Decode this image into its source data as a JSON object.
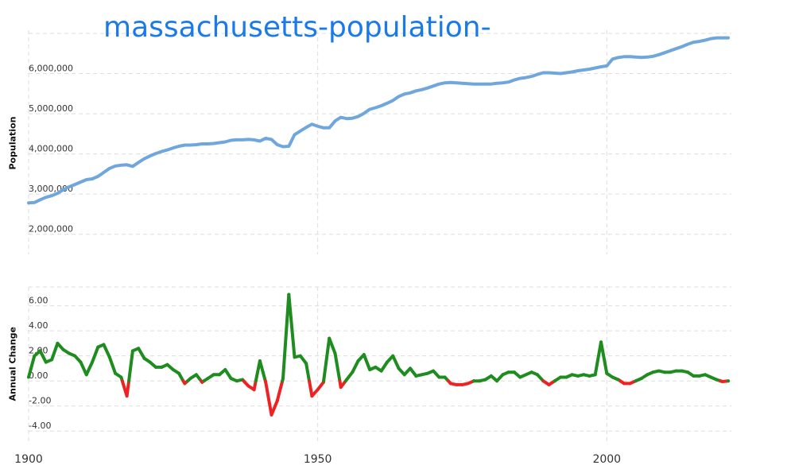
{
  "chart_data": [
    {
      "type": "line",
      "title": "massachusetts-population-",
      "ylabel": "Population",
      "xlabel": "",
      "xlim": [
        1900,
        2021
      ],
      "ylim": [
        1500000,
        7000000
      ],
      "x_ticks": [
        1900,
        1950,
        2000
      ],
      "x_tick_labels": [
        "1900",
        "1950",
        "2000"
      ],
      "y_ticks": [
        2000000,
        3000000,
        4000000,
        5000000,
        6000000
      ],
      "y_tick_labels": [
        "2,000,000",
        "3,000,000",
        "4,000,000",
        "5,000,000",
        "6,000,000"
      ],
      "grid": true,
      "colors": {
        "line": "#6fa6dc",
        "grid": "#dddddd"
      },
      "series": [
        {
          "x": [
            1900,
            1901,
            1902,
            1903,
            1904,
            1905,
            1906,
            1907,
            1908,
            1909,
            1910,
            1911,
            1912,
            1913,
            1914,
            1915,
            1916,
            1917,
            1918,
            1919,
            1920,
            1921,
            1922,
            1923,
            1924,
            1925,
            1926,
            1927,
            1928,
            1929,
            1930,
            1931,
            1932,
            1933,
            1934,
            1935,
            1936,
            1937,
            1938,
            1939,
            1940,
            1941,
            1942,
            1943,
            1944,
            1945,
            1946,
            1947,
            1948,
            1949,
            1950,
            1951,
            1952,
            1953,
            1954,
            1955,
            1956,
            1957,
            1958,
            1959,
            1960,
            1961,
            1962,
            1963,
            1964,
            1965,
            1966,
            1967,
            1968,
            1969,
            1970,
            1971,
            1972,
            1973,
            1974,
            1975,
            1976,
            1977,
            1978,
            1979,
            1980,
            1981,
            1982,
            1983,
            1984,
            1985,
            1986,
            1987,
            1988,
            1989,
            1990,
            1991,
            1992,
            1993,
            1994,
            1995,
            1996,
            1997,
            1998,
            1999,
            2000,
            2001,
            2002,
            2003,
            2004,
            2005,
            2006,
            2007,
            2008,
            2009,
            2010,
            2011,
            2012,
            2013,
            2014,
            2015,
            2016,
            2017,
            2018,
            2019,
            2020,
            2021
          ],
          "values": [
            2780000,
            2790000,
            2860000,
            2920000,
            2960000,
            3020000,
            3110000,
            3180000,
            3240000,
            3300000,
            3360000,
            3380000,
            3440000,
            3540000,
            3640000,
            3700000,
            3720000,
            3730000,
            3690000,
            3790000,
            3880000,
            3950000,
            4010000,
            4060000,
            4100000,
            4150000,
            4190000,
            4220000,
            4220000,
            4230000,
            4250000,
            4250000,
            4260000,
            4280000,
            4300000,
            4340000,
            4350000,
            4350000,
            4360000,
            4350000,
            4320000,
            4390000,
            4360000,
            4230000,
            4180000,
            4190000,
            4480000,
            4570000,
            4660000,
            4740000,
            4690000,
            4650000,
            4650000,
            4820000,
            4910000,
            4880000,
            4890000,
            4930000,
            5010000,
            5110000,
            5150000,
            5200000,
            5260000,
            5330000,
            5430000,
            5490000,
            5520000,
            5570000,
            5600000,
            5640000,
            5690000,
            5740000,
            5770000,
            5780000,
            5770000,
            5760000,
            5750000,
            5740000,
            5740000,
            5740000,
            5740000,
            5760000,
            5770000,
            5790000,
            5840000,
            5880000,
            5900000,
            5930000,
            5980000,
            6020000,
            6020000,
            6010000,
            6000000,
            6020000,
            6040000,
            6070000,
            6090000,
            6110000,
            6140000,
            6170000,
            6190000,
            6360000,
            6400000,
            6420000,
            6420000,
            6410000,
            6400000,
            6410000,
            6430000,
            6470000,
            6520000,
            6570000,
            6620000,
            6670000,
            6730000,
            6780000,
            6800000,
            6830000,
            6870000,
            6890000,
            6890000,
            6890000
          ]
        }
      ]
    },
    {
      "type": "line",
      "title": "",
      "ylabel": "Annual Change",
      "xlabel": "",
      "xlim": [
        1900,
        2021
      ],
      "ylim": [
        -5,
        7.5
      ],
      "x_ticks": [
        1900,
        1950,
        2000
      ],
      "x_tick_labels": [
        "1900",
        "1950",
        "2000"
      ],
      "y_ticks": [
        -4,
        -2,
        0,
        2,
        4,
        6
      ],
      "y_tick_labels": [
        "-4.00",
        "-2.00",
        "0.00",
        "2.00",
        "4.00",
        "6.00"
      ],
      "grid": true,
      "colors": {
        "positive": "#1e8c1e",
        "negative": "#ee2222",
        "grid": "#dddddd"
      },
      "series": [
        {
          "x": [
            1900,
            1901,
            1902,
            1903,
            1904,
            1905,
            1906,
            1907,
            1908,
            1909,
            1910,
            1911,
            1912,
            1913,
            1914,
            1915,
            1916,
            1917,
            1918,
            1919,
            1920,
            1921,
            1922,
            1923,
            1924,
            1925,
            1926,
            1927,
            1928,
            1929,
            1930,
            1931,
            1932,
            1933,
            1934,
            1935,
            1936,
            1937,
            1938,
            1939,
            1940,
            1941,
            1942,
            1943,
            1944,
            1945,
            1946,
            1947,
            1948,
            1949,
            1950,
            1951,
            1952,
            1953,
            1954,
            1955,
            1956,
            1957,
            1958,
            1959,
            1960,
            1961,
            1962,
            1963,
            1964,
            1965,
            1966,
            1967,
            1968,
            1969,
            1970,
            1971,
            1972,
            1973,
            1974,
            1975,
            1976,
            1977,
            1978,
            1979,
            1980,
            1981,
            1982,
            1983,
            1984,
            1985,
            1986,
            1987,
            1988,
            1989,
            1990,
            1991,
            1992,
            1993,
            1994,
            1995,
            1996,
            1997,
            1998,
            1999,
            2000,
            2001,
            2002,
            2003,
            2004,
            2005,
            2006,
            2007,
            2008,
            2009,
            2010,
            2011,
            2012,
            2013,
            2014,
            2015,
            2016,
            2017,
            2018,
            2019,
            2020,
            2021
          ],
          "values": [
            0.3,
            2.0,
            2.4,
            1.5,
            1.7,
            3.0,
            2.5,
            2.2,
            2.0,
            1.5,
            0.5,
            1.5,
            2.7,
            2.9,
            1.9,
            0.6,
            0.3,
            -1.2,
            2.4,
            2.6,
            1.8,
            1.5,
            1.1,
            1.1,
            1.3,
            0.9,
            0.6,
            -0.2,
            0.2,
            0.5,
            -0.1,
            0.2,
            0.5,
            0.5,
            0.9,
            0.2,
            0.0,
            0.1,
            -0.4,
            -0.7,
            1.6,
            -0.1,
            -2.7,
            -1.6,
            0.2,
            6.9,
            1.9,
            2.0,
            1.4,
            -1.2,
            -0.7,
            -0.1,
            3.4,
            2.2,
            -0.5,
            0.1,
            0.7,
            1.6,
            2.1,
            0.9,
            1.1,
            0.8,
            1.5,
            2.0,
            1.0,
            0.5,
            1.0,
            0.4,
            0.5,
            0.6,
            0.8,
            0.3,
            0.3,
            -0.2,
            -0.3,
            -0.3,
            -0.2,
            0.0,
            0.0,
            0.1,
            0.4,
            0.0,
            0.5,
            0.7,
            0.7,
            0.3,
            0.5,
            0.7,
            0.5,
            0.0,
            -0.3,
            0.0,
            0.3,
            0.3,
            0.5,
            0.4,
            0.5,
            0.4,
            0.5,
            3.1,
            0.6,
            0.3,
            0.1,
            -0.2,
            -0.2,
            0.0,
            0.2,
            0.5,
            0.7,
            0.8,
            0.7,
            0.7,
            0.8,
            0.8,
            0.7,
            0.4,
            0.4,
            0.5,
            0.3,
            0.1,
            -0.05,
            0.0
          ]
        }
      ]
    }
  ]
}
